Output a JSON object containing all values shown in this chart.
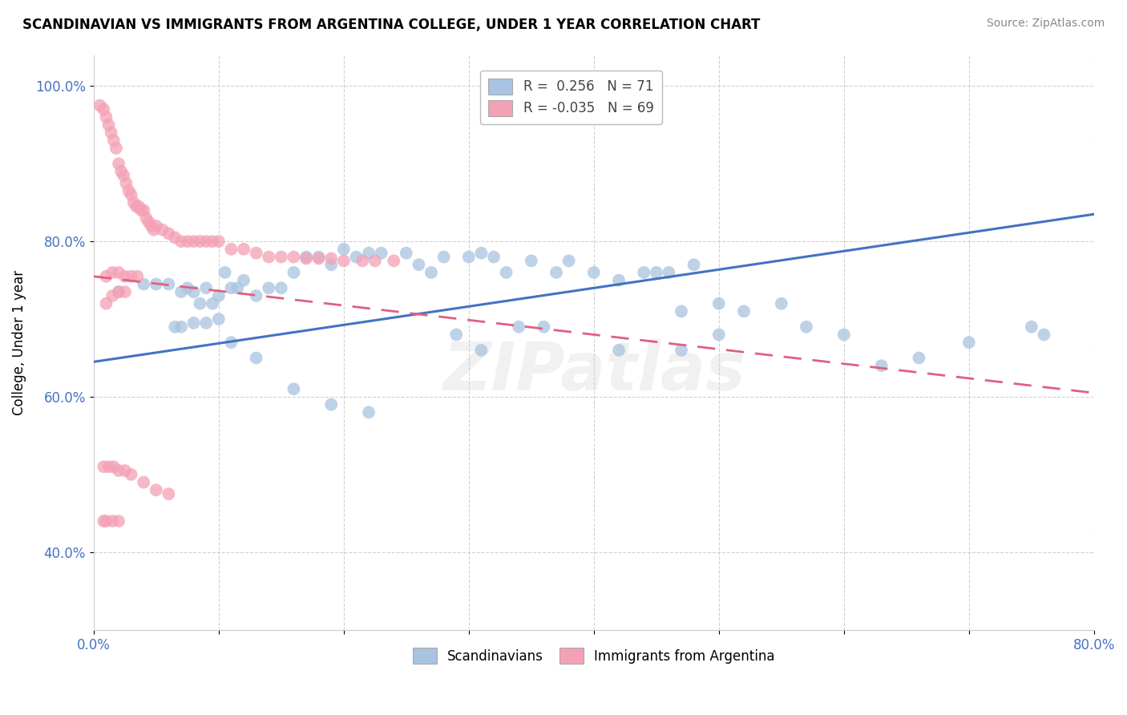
{
  "title": "SCANDINAVIAN VS IMMIGRANTS FROM ARGENTINA COLLEGE, UNDER 1 YEAR CORRELATION CHART",
  "source": "Source: ZipAtlas.com",
  "ylabel": "College, Under 1 year",
  "xlim": [
    0.0,
    0.8
  ],
  "ylim": [
    0.3,
    1.04
  ],
  "yticks": [
    0.4,
    0.6,
    0.8,
    1.0
  ],
  "yticklabels": [
    "40.0%",
    "60.0%",
    "80.0%",
    "100.0%"
  ],
  "blue_color": "#a8c4e0",
  "pink_color": "#f4a0b5",
  "blue_line_color": "#4472c4",
  "pink_line_color": "#e06080",
  "watermark": "ZIPatlas",
  "legend_R_blue": "0.256",
  "legend_N_blue": "71",
  "legend_R_pink": "-0.035",
  "legend_N_pink": "69",
  "blue_line_x0": 0.0,
  "blue_line_y0": 0.645,
  "blue_line_x1": 0.8,
  "blue_line_y1": 0.835,
  "pink_line_x0": 0.0,
  "pink_line_y0": 0.755,
  "pink_line_x1": 0.8,
  "pink_line_y1": 0.605,
  "blue_x": [
    0.02,
    0.04,
    0.05,
    0.06,
    0.07,
    0.075,
    0.08,
    0.085,
    0.09,
    0.095,
    0.1,
    0.105,
    0.11,
    0.115,
    0.12,
    0.13,
    0.14,
    0.15,
    0.16,
    0.17,
    0.18,
    0.19,
    0.2,
    0.21,
    0.22,
    0.23,
    0.25,
    0.26,
    0.27,
    0.28,
    0.3,
    0.31,
    0.32,
    0.33,
    0.35,
    0.37,
    0.38,
    0.4,
    0.42,
    0.44,
    0.45,
    0.46,
    0.48,
    0.5,
    0.52,
    0.55,
    0.57,
    0.6,
    0.63,
    0.66,
    0.7,
    0.75,
    0.76,
    0.34,
    0.36,
    0.29,
    0.31,
    0.47,
    0.5,
    0.42,
    0.065,
    0.07,
    0.08,
    0.09,
    0.1,
    0.11,
    0.13,
    0.16,
    0.19,
    0.22,
    0.47
  ],
  "blue_y": [
    0.735,
    0.745,
    0.745,
    0.745,
    0.735,
    0.74,
    0.735,
    0.72,
    0.74,
    0.72,
    0.73,
    0.76,
    0.74,
    0.74,
    0.75,
    0.73,
    0.74,
    0.74,
    0.76,
    0.78,
    0.78,
    0.77,
    0.79,
    0.78,
    0.785,
    0.785,
    0.785,
    0.77,
    0.76,
    0.78,
    0.78,
    0.785,
    0.78,
    0.76,
    0.775,
    0.76,
    0.775,
    0.76,
    0.75,
    0.76,
    0.76,
    0.76,
    0.77,
    0.72,
    0.71,
    0.72,
    0.69,
    0.68,
    0.64,
    0.65,
    0.67,
    0.69,
    0.68,
    0.69,
    0.69,
    0.68,
    0.66,
    0.66,
    0.68,
    0.66,
    0.69,
    0.69,
    0.695,
    0.695,
    0.7,
    0.67,
    0.65,
    0.61,
    0.59,
    0.58,
    0.71
  ],
  "pink_x": [
    0.005,
    0.008,
    0.01,
    0.012,
    0.014,
    0.016,
    0.018,
    0.02,
    0.022,
    0.024,
    0.026,
    0.028,
    0.03,
    0.032,
    0.034,
    0.036,
    0.038,
    0.04,
    0.042,
    0.044,
    0.046,
    0.048,
    0.05,
    0.055,
    0.06,
    0.065,
    0.07,
    0.075,
    0.08,
    0.085,
    0.09,
    0.095,
    0.1,
    0.11,
    0.12,
    0.13,
    0.14,
    0.15,
    0.16,
    0.17,
    0.18,
    0.19,
    0.2,
    0.215,
    0.225,
    0.24,
    0.01,
    0.015,
    0.02,
    0.025,
    0.03,
    0.035,
    0.025,
    0.02,
    0.015,
    0.01,
    0.008,
    0.012,
    0.016,
    0.02,
    0.025,
    0.03,
    0.04,
    0.05,
    0.06,
    0.008,
    0.01,
    0.015,
    0.02
  ],
  "pink_y": [
    0.975,
    0.97,
    0.96,
    0.95,
    0.94,
    0.93,
    0.92,
    0.9,
    0.89,
    0.885,
    0.875,
    0.865,
    0.86,
    0.85,
    0.845,
    0.845,
    0.84,
    0.84,
    0.83,
    0.825,
    0.82,
    0.815,
    0.82,
    0.815,
    0.81,
    0.805,
    0.8,
    0.8,
    0.8,
    0.8,
    0.8,
    0.8,
    0.8,
    0.79,
    0.79,
    0.785,
    0.78,
    0.78,
    0.78,
    0.778,
    0.778,
    0.778,
    0.775,
    0.775,
    0.775,
    0.775,
    0.755,
    0.76,
    0.76,
    0.755,
    0.755,
    0.755,
    0.735,
    0.735,
    0.73,
    0.72,
    0.51,
    0.51,
    0.51,
    0.505,
    0.505,
    0.5,
    0.49,
    0.48,
    0.475,
    0.44,
    0.44,
    0.44,
    0.44
  ]
}
